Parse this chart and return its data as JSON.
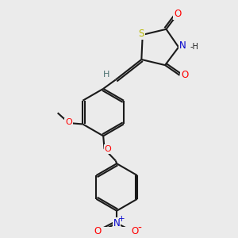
{
  "background_color": "#ebebeb",
  "bond_color": "#1a1a1a",
  "atom_colors": {
    "O": "#ff0000",
    "N": "#0000cc",
    "S": "#b8b800",
    "H_label": "#4a7070",
    "C": "#1a1a1a"
  },
  "figsize": [
    3.0,
    3.0
  ],
  "dpi": 100,
  "lw": 1.5
}
